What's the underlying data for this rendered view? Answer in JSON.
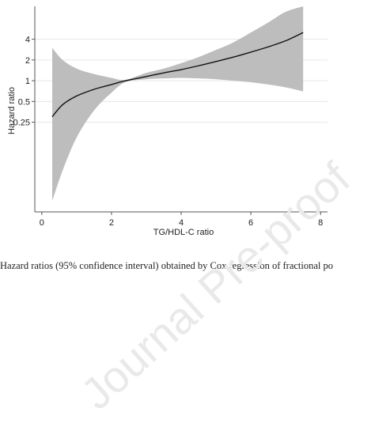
{
  "chart_data": {
    "type": "line",
    "xlabel": "TG/HDL-C ratio",
    "ylabel": "Hazard ratio",
    "xlim": [
      -0.2,
      8.2
    ],
    "ylim": [
      0.0125,
      12
    ],
    "yscale": "log",
    "xticks": [
      "0",
      "2",
      "4",
      "6",
      "8"
    ],
    "yticks": [
      "0.25",
      "0.5",
      "1",
      "2",
      "4"
    ],
    "ytick_values": [
      0.25,
      0.5,
      1,
      2,
      4
    ],
    "xtick_values": [
      0,
      2,
      4,
      6,
      8
    ],
    "grid": true,
    "series": [
      {
        "x": [
          0.3,
          0.6,
          1.0,
          1.5,
          2.0,
          2.4,
          3.0,
          3.5,
          4.0,
          4.5,
          5.0,
          5.5,
          6.0,
          6.5,
          7.0,
          7.5
        ],
        "y": [
          0.3,
          0.45,
          0.6,
          0.75,
          0.88,
          1.0,
          1.15,
          1.3,
          1.45,
          1.65,
          1.9,
          2.2,
          2.6,
          3.1,
          3.8,
          5.0
        ],
        "lower": [
          0.018,
          0.05,
          0.15,
          0.37,
          0.67,
          0.95,
          1.05,
          1.08,
          1.1,
          1.08,
          1.05,
          1.0,
          0.95,
          0.88,
          0.8,
          0.7
        ],
        "upper": [
          3.0,
          2.0,
          1.5,
          1.25,
          1.1,
          1.03,
          1.3,
          1.5,
          1.8,
          2.2,
          2.8,
          3.6,
          5.0,
          7.0,
          10.0,
          12.0
        ]
      }
    ],
    "band_color": "#bdbdbd",
    "line_color": "#111111"
  },
  "caption": "Hazard ratios (95% confidence interval) obtained by Cox regression of fractional po",
  "watermark": "Journal Pre-proof"
}
